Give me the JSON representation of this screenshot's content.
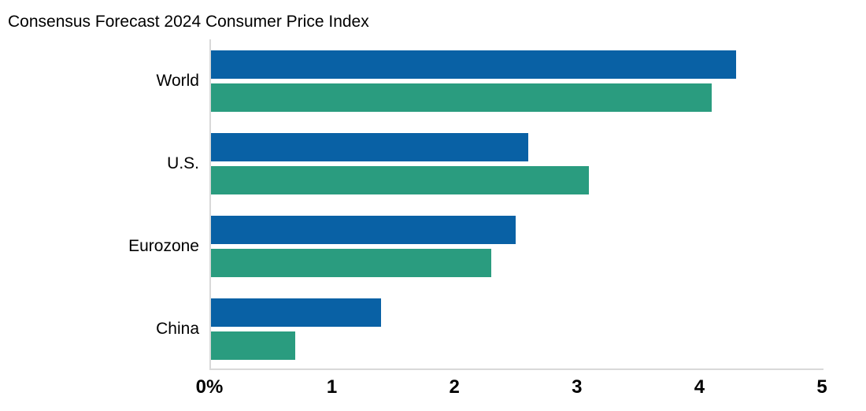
{
  "chart_data": {
    "type": "bar",
    "orientation": "horizontal",
    "title": "Consensus Forecast 2024 Consumer Price Index",
    "categories": [
      "World",
      "U.S.",
      "Eurozone",
      "China"
    ],
    "series": [
      {
        "name": "blue-series",
        "color": "#0961A5",
        "values": [
          4.3,
          2.6,
          2.5,
          1.4
        ]
      },
      {
        "name": "green-series",
        "color": "#2A9C7F",
        "values": [
          4.1,
          3.1,
          2.3,
          0.7
        ]
      }
    ],
    "x_ticks": [
      "0%",
      "1",
      "2",
      "3",
      "4",
      "5"
    ],
    "xlim": [
      0,
      5
    ],
    "xlabel": "",
    "ylabel": "",
    "grid": false,
    "legend": false,
    "axis_color": "#D9D9D9",
    "text_color": "#000000",
    "background": "#FFFFFF"
  }
}
